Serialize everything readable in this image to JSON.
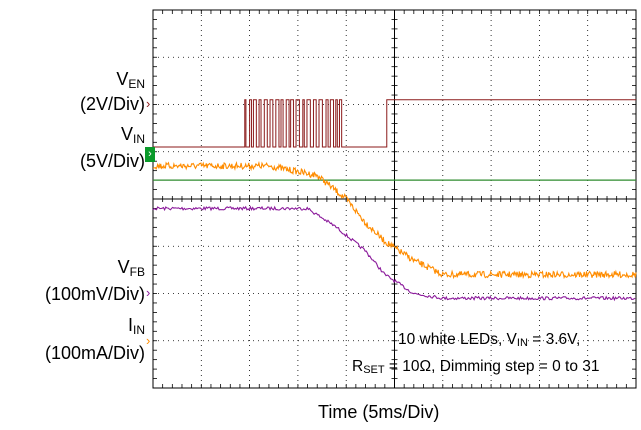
{
  "chart_data": {
    "type": "line",
    "x_axis": {
      "label": "Time (5ms/Div)",
      "divisions": 10,
      "ms_per_div": 5,
      "range_ms": [
        0,
        50
      ]
    },
    "y_axis": {
      "divisions": 8
    },
    "series": [
      {
        "name": "V_EN",
        "scale": "2V/Div",
        "color": "#8b1a1a",
        "baseline_div": 2.9,
        "high_div": 1.9,
        "events": [
          {
            "t_ms": [
              0,
              9.5
            ],
            "state": "low"
          },
          {
            "t_ms": [
              9.5,
              19.4
            ],
            "state": "pulsing 0 to 31 steps"
          },
          {
            "t_ms": [
              19.4,
              24.2
            ],
            "state": "low"
          },
          {
            "t_ms": [
              24.2,
              50
            ],
            "state": "high"
          }
        ]
      },
      {
        "name": "V_IN",
        "scale": "5V/Div",
        "color": "#2e8b2e",
        "level_div": 3.6,
        "note": "flat at 3.6V"
      },
      {
        "name": "V_FB",
        "scale": "100mV/Div",
        "color": "#8b1a9b",
        "x_ms": [
          0,
          16,
          19,
          22,
          24,
          27,
          30,
          36,
          50
        ],
        "y_div": [
          4.2,
          4.2,
          4.6,
          5.1,
          5.6,
          6.0,
          6.1,
          6.1,
          6.1
        ]
      },
      {
        "name": "I_IN",
        "scale": "100mA/Div",
        "color": "#ff8c00",
        "x_ms": [
          0,
          12,
          17,
          20,
          22,
          24,
          27,
          30,
          36,
          50
        ],
        "y_div": [
          3.3,
          3.3,
          3.5,
          4.0,
          4.5,
          4.9,
          5.3,
          5.6,
          5.6,
          5.6
        ]
      }
    ]
  },
  "labels": {
    "ven": {
      "main": "V",
      "sub": "EN",
      "scale": "(2V/Div)"
    },
    "vin": {
      "main": "V",
      "sub": "IN",
      "scale": "(5V/Div)"
    },
    "vfb": {
      "main": "V",
      "sub": "FB",
      "scale": "(100mV/Div)"
    },
    "iin": {
      "main": "I",
      "sub": "IN",
      "scale": "(100mA/Div)"
    }
  },
  "markers": {
    "arrow": "›",
    "green": "›"
  },
  "annotation": {
    "line1_a": "10 white LEDs, V",
    "line1_sub": "IN",
    "line1_b": " = 3.6V,",
    "line2_a": "R",
    "line2_sub": "SET",
    "line2_b": " = 10Ω, Dimming step = 0 to 31"
  },
  "x_label": "Time  (5ms/Div)"
}
